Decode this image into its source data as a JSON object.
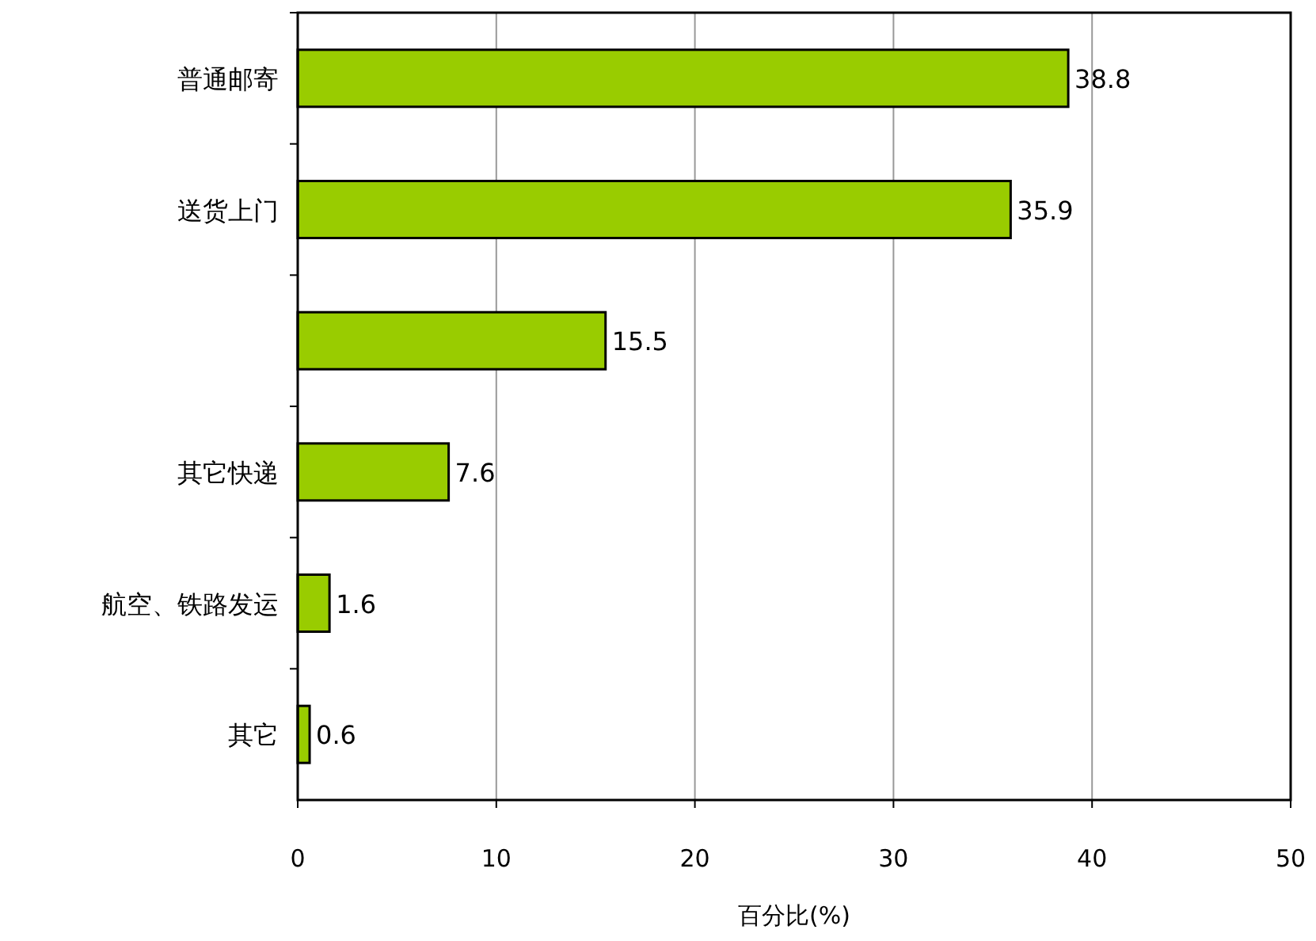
{
  "chart_data": {
    "type": "bar",
    "orientation": "horizontal",
    "categories": [
      "普通邮寄",
      "送货上门",
      null,
      "其它快递",
      "航空、铁路发运",
      "其它"
    ],
    "values": [
      38.8,
      35.9,
      15.5,
      7.6,
      1.6,
      0.6
    ],
    "color": "#99cc00",
    "xlim": [
      0,
      50
    ],
    "xticks": [
      0,
      10,
      20,
      30,
      40,
      50
    ],
    "xlabel": "百分比(%)",
    "grid": "x",
    "data_labels": true
  }
}
